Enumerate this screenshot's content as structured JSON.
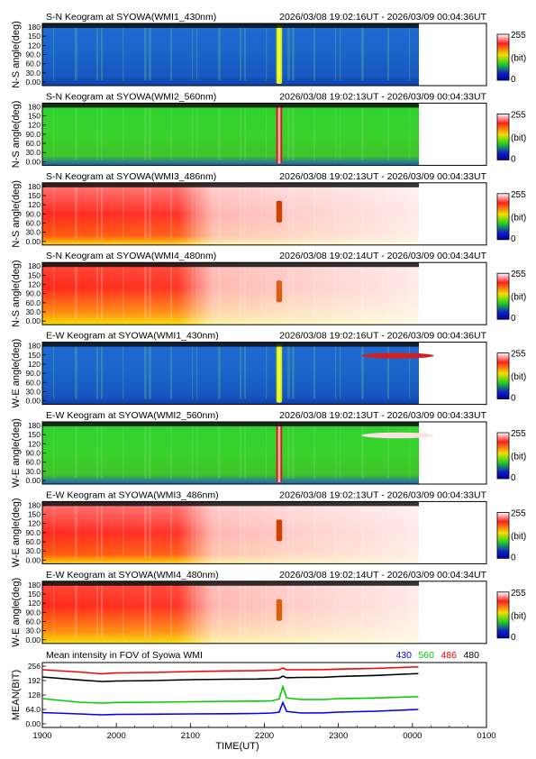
{
  "chart_data": {
    "type": "heatmap",
    "time_axis": {
      "label": "TIME(UT)",
      "ticks": [
        "1900",
        "2000",
        "2100",
        "2200",
        "2300",
        "0000",
        "0100"
      ],
      "range_hours": [
        19.0,
        25.0
      ],
      "data_end_hours": 24.08
    },
    "colorbar": {
      "max_label": "255",
      "unit_label": "(bit)",
      "min_label": "0"
    },
    "keograms": [
      {
        "title": "S-N Keogram at SYOWA(WMI1_430nm)",
        "time_range": "2026/03/08 19:02:16UT - 2026/03/09 00:04:36UT",
        "ylabel": "N-S angle(deg)",
        "yticks": [
          "180",
          "150",
          "120",
          "90.0",
          "60.0",
          "30.0",
          "0.00"
        ],
        "wavelength": "430"
      },
      {
        "title": "S-N Keogram at SYOWA(WMI2_560nm)",
        "time_range": "2026/03/08 19:02:13UT - 2026/03/09 00:04:33UT",
        "ylabel": "N-S angle(deg)",
        "yticks": [
          "180",
          "150",
          "120",
          "90.0",
          "60.0",
          "30.0",
          "0.00"
        ],
        "wavelength": "560"
      },
      {
        "title": "S-N Keogram at SYOWA(WMI3_486nm)",
        "time_range": "2026/03/08 19:02:13UT - 2026/03/09 00:04:33UT",
        "ylabel": "N-S angle(deg)",
        "yticks": [
          "180",
          "150",
          "120",
          "90.0",
          "60.0",
          "30.0",
          "0.00"
        ],
        "wavelength": "486"
      },
      {
        "title": "S-N Keogram at SYOWA(WMI4_480nm)",
        "time_range": "2026/03/08 19:02:14UT - 2026/03/09 00:04:34UT",
        "ylabel": "N-S angle(deg)",
        "yticks": [
          "180",
          "150",
          "120",
          "90.0",
          "60.0",
          "30.0",
          "0.00"
        ],
        "wavelength": "480"
      },
      {
        "title": "E-W Keogram at SYOWA(WMI1_430nm)",
        "time_range": "2026/03/08 19:02:16UT - 2026/03/09 00:04:36UT",
        "ylabel": "W-E angle(deg)",
        "yticks": [
          "180",
          "150",
          "120",
          "90.0",
          "60.0",
          "30.0",
          "0.00"
        ],
        "wavelength": "430"
      },
      {
        "title": "E-W Keogram at SYOWA(WMI2_560nm)",
        "time_range": "2026/03/08 19:02:13UT - 2026/03/09 00:04:33UT",
        "ylabel": "W-E angle(deg)",
        "yticks": [
          "180",
          "150",
          "120",
          "90.0",
          "60.0",
          "30.0",
          "0.00"
        ],
        "wavelength": "560"
      },
      {
        "title": "E-W Keogram at SYOWA(WMI3_486nm)",
        "time_range": "2026/03/08 19:02:13UT - 2026/03/09 00:04:33UT",
        "ylabel": "W-E angle(deg)",
        "yticks": [
          "180",
          "150",
          "120",
          "90.0",
          "60.0",
          "30.0",
          "0.00"
        ],
        "wavelength": "486"
      },
      {
        "title": "E-W Keogram at SYOWA(WMI4_480nm)",
        "time_range": "2026/03/08 19:02:14UT - 2026/03/09 00:04:34UT",
        "ylabel": "W-E angle(deg)",
        "yticks": [
          "180",
          "150",
          "120",
          "90.0",
          "60.0",
          "30.0",
          "0.00"
        ],
        "wavelength": "480"
      }
    ],
    "mean_intensity": {
      "type": "line",
      "title": "Mean intensity in FOV of Syowa WMI",
      "ylabel": "MEAN(BIT)",
      "yticks": [
        "256",
        "192",
        "128",
        "64.0",
        "0.00"
      ],
      "ylim": [
        0,
        256
      ],
      "x": [
        19.0,
        19.5,
        19.8,
        20.0,
        20.5,
        21.0,
        21.5,
        21.9,
        22.1,
        22.2,
        22.25,
        22.3,
        22.5,
        22.8,
        23.0,
        23.5,
        24.0,
        24.08
      ],
      "series": [
        {
          "name": "430",
          "color": "#0000ff",
          "values": [
            50,
            44,
            40,
            42,
            43,
            44,
            45,
            46,
            48,
            52,
            95,
            55,
            48,
            49,
            52,
            56,
            63,
            64
          ]
        },
        {
          "name": "560",
          "color": "#00cc00",
          "values": [
            112,
            96,
            92,
            95,
            96,
            98,
            100,
            101,
            102,
            110,
            165,
            115,
            108,
            108,
            112,
            115,
            120,
            120
          ]
        },
        {
          "name": "486",
          "color": "#ff0000",
          "values": [
            240,
            230,
            222,
            226,
            228,
            232,
            235,
            236,
            238,
            240,
            248,
            240,
            240,
            241,
            243,
            246,
            252,
            253
          ]
        },
        {
          "name": "480",
          "color": "#000000",
          "values": [
            208,
            195,
            188,
            190,
            192,
            196,
            198,
            199,
            201,
            203,
            212,
            205,
            206,
            207,
            210,
            215,
            222,
            223
          ]
        }
      ]
    }
  }
}
